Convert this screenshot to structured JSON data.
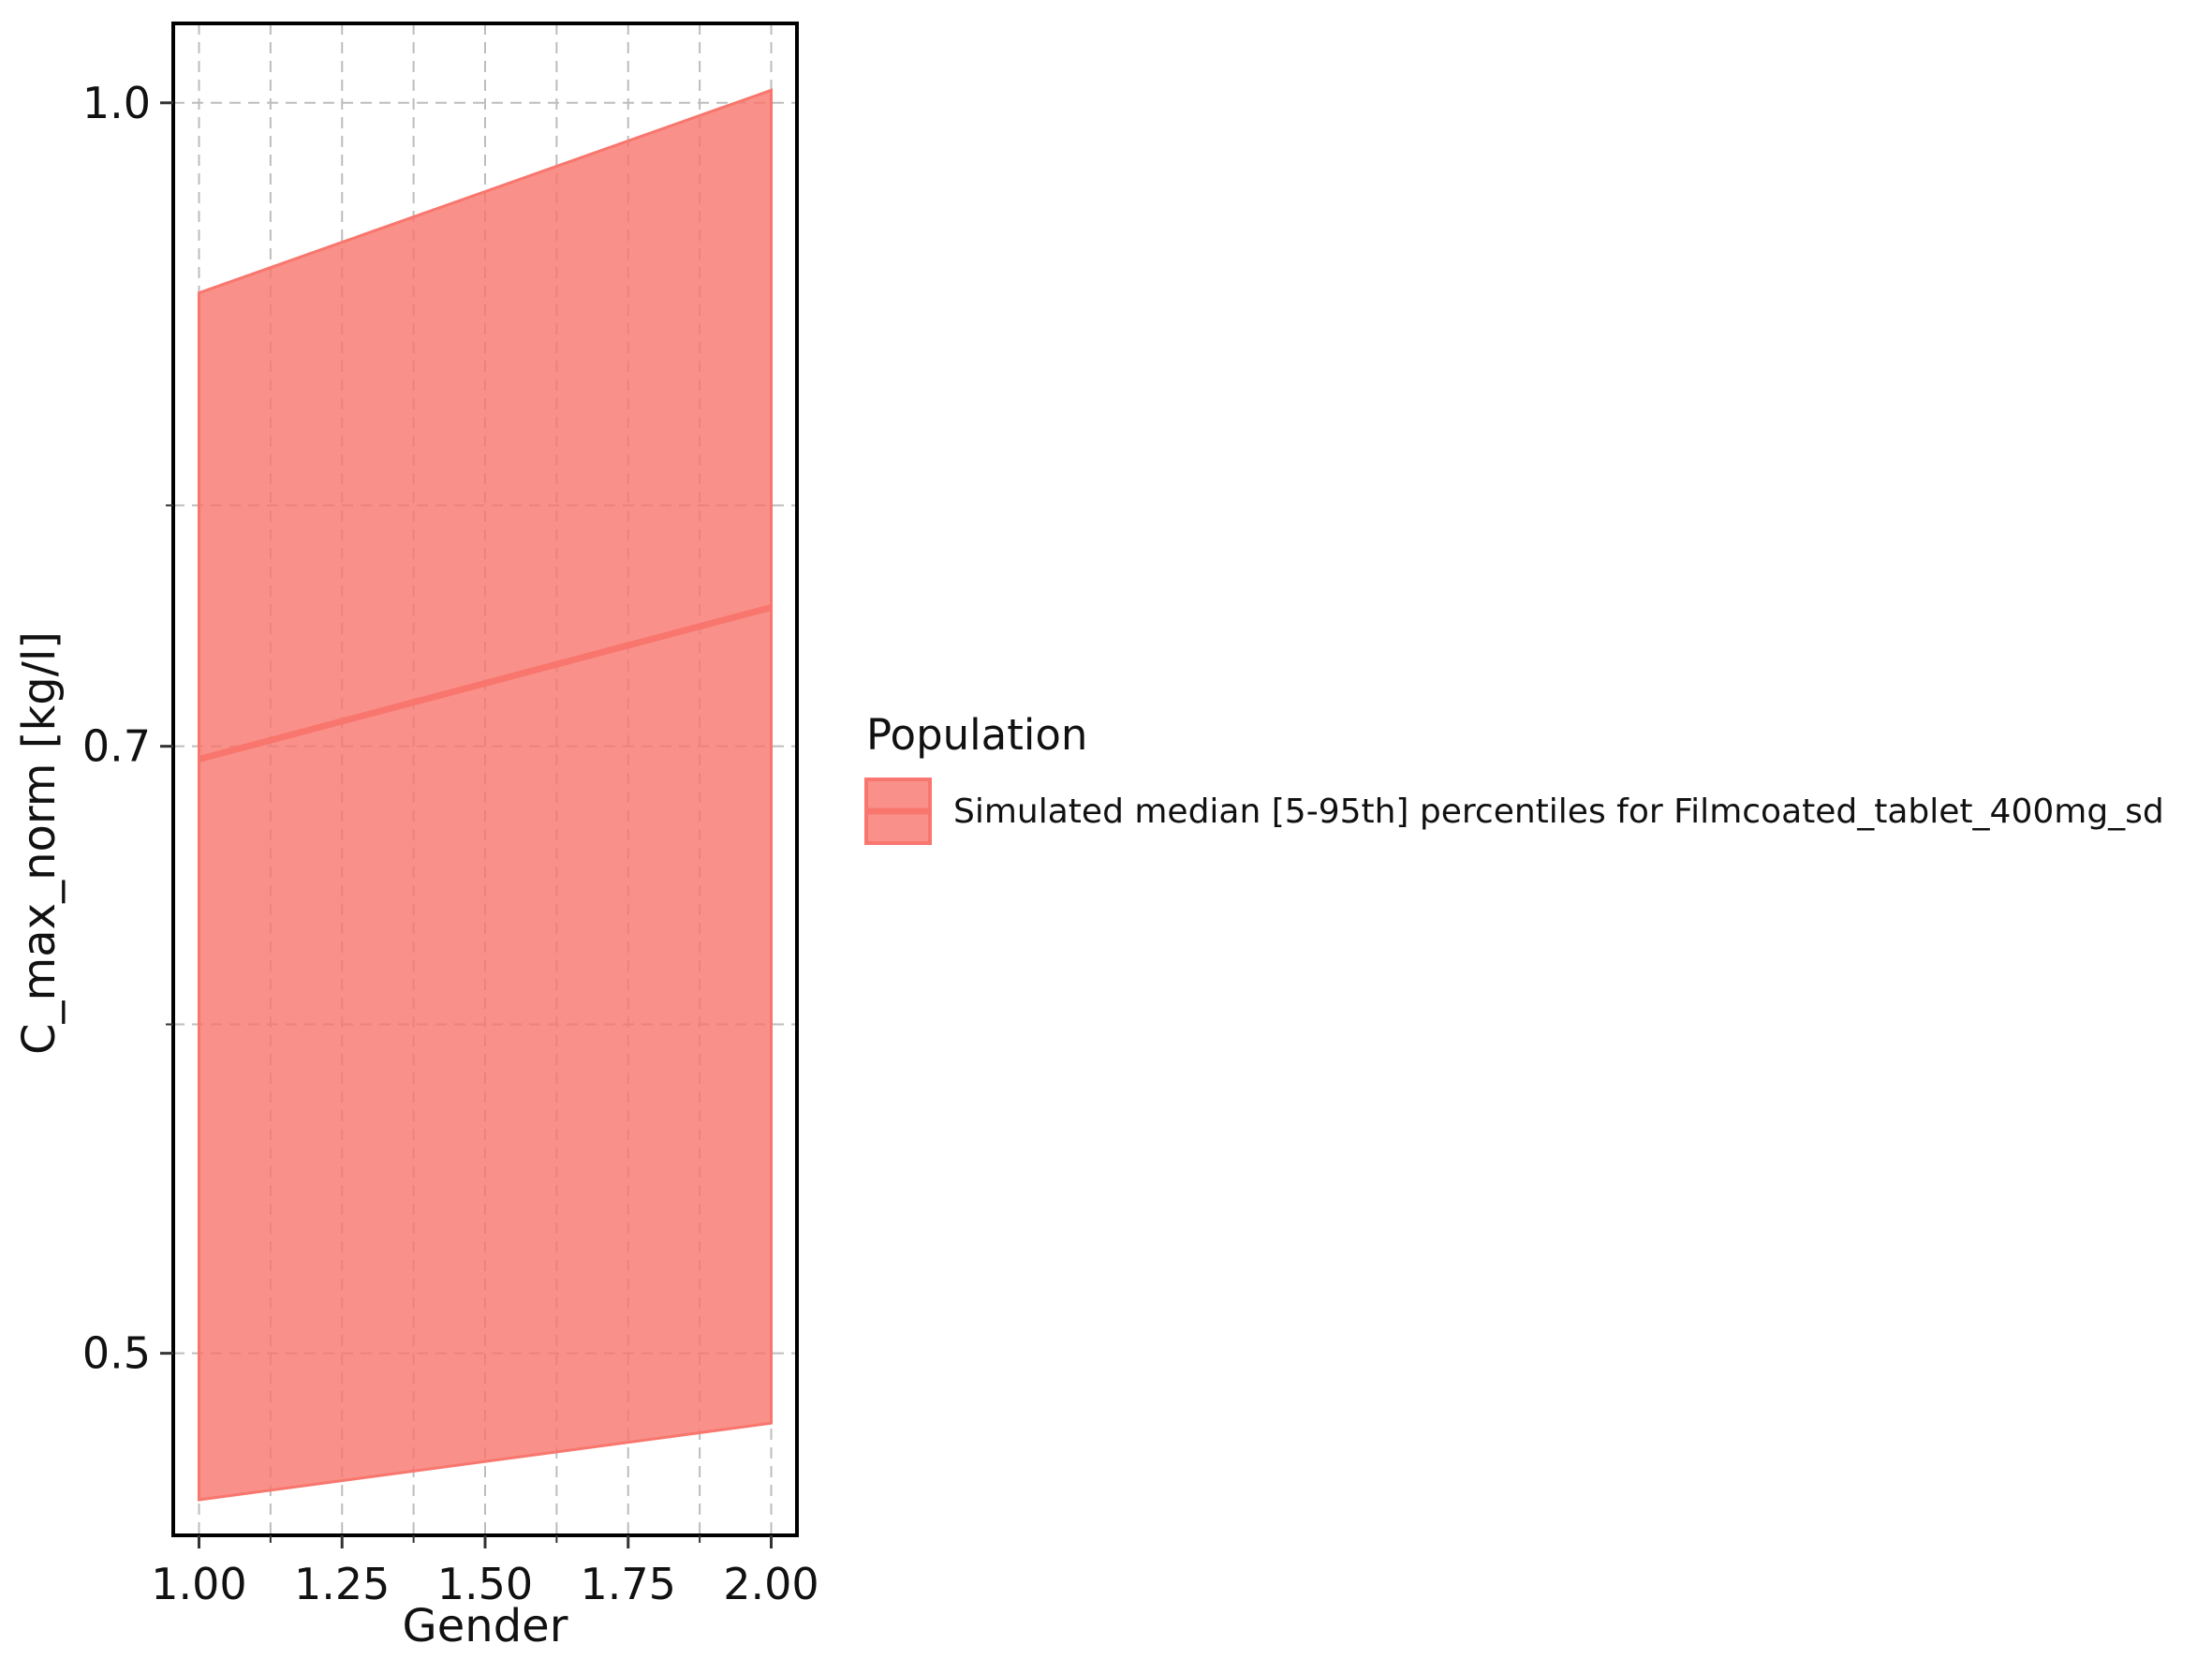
{
  "chart_data": {
    "type": "area",
    "xlabel": "Gender",
    "ylabel": "C_max_norm [kg/l]",
    "x_scale": "linear",
    "y_scale": "log",
    "xlim": [
      0.955,
      2.045
    ],
    "ylim": [
      0.452,
      1.045
    ],
    "x_ticks": [
      1.0,
      1.25,
      1.5,
      1.75,
      2.0
    ],
    "x_tick_labels": [
      "1.00",
      "1.25",
      "1.50",
      "1.75",
      "2.00"
    ],
    "x_minor_ticks": [
      1.125,
      1.375,
      1.625,
      1.875
    ],
    "y_ticks": [
      0.5,
      0.7,
      1.0
    ],
    "y_tick_labels": [
      "0.5",
      "0.7",
      "1.0"
    ],
    "y_minor_ticks": [
      0.6,
      0.8
    ],
    "grid": true,
    "legend_title": "Population",
    "legend_position": "right",
    "series": [
      {
        "name": "Simulated median [5-95th] percentiles for Filmcoated_tablet_400mg_sd",
        "color": "#f8766d",
        "x": [
          1.0,
          2.0
        ],
        "median": [
          0.695,
          0.756
        ],
        "lower": [
          0.461,
          0.481
        ],
        "upper": [
          0.9,
          1.007
        ]
      }
    ]
  }
}
